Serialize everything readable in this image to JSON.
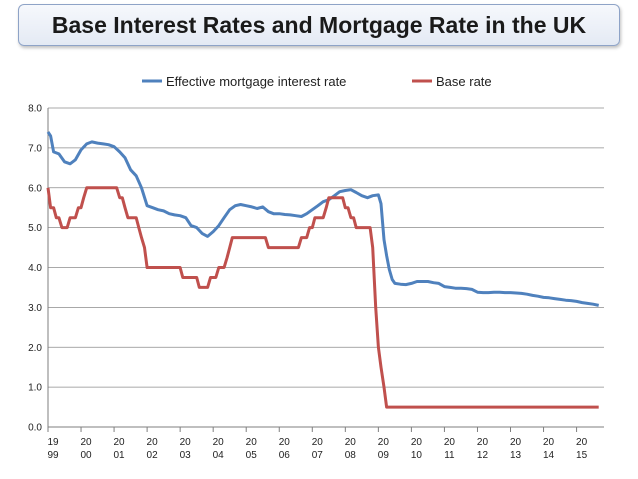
{
  "chart_data": {
    "type": "line",
    "title": "Base Interest Rates and Mortgage Rate in the UK",
    "xlabel": "",
    "ylabel": "",
    "ylim": [
      0,
      8
    ],
    "xlim": [
      1999.0,
      2015.83
    ],
    "grid": "horizontal",
    "legend_position": "top",
    "y_ticks": [
      "0.0",
      "1.0",
      "2.0",
      "3.0",
      "4.0",
      "5.0",
      "6.0",
      "7.0",
      "8.0"
    ],
    "x_ticks": [
      {
        "year": 1999,
        "top": "19",
        "bottom": "99"
      },
      {
        "year": 2000,
        "top": "20",
        "bottom": "00"
      },
      {
        "year": 2001,
        "top": "20",
        "bottom": "01"
      },
      {
        "year": 2002,
        "top": "20",
        "bottom": "02"
      },
      {
        "year": 2003,
        "top": "20",
        "bottom": "03"
      },
      {
        "year": 2004,
        "top": "20",
        "bottom": "04"
      },
      {
        "year": 2005,
        "top": "20",
        "bottom": "05"
      },
      {
        "year": 2006,
        "top": "20",
        "bottom": "06"
      },
      {
        "year": 2007,
        "top": "20",
        "bottom": "07"
      },
      {
        "year": 2008,
        "top": "20",
        "bottom": "08"
      },
      {
        "year": 2009,
        "top": "20",
        "bottom": "09"
      },
      {
        "year": 2010,
        "top": "20",
        "bottom": "10"
      },
      {
        "year": 2011,
        "top": "20",
        "bottom": "11"
      },
      {
        "year": 2012,
        "top": "20",
        "bottom": "12"
      },
      {
        "year": 2013,
        "top": "20",
        "bottom": "13"
      },
      {
        "year": 2014,
        "top": "20",
        "bottom": "14"
      },
      {
        "year": 2015,
        "top": "20",
        "bottom": "15"
      }
    ],
    "series": [
      {
        "name": "Effective mortgage interest rate",
        "color": "#4f81bd",
        "points": [
          [
            1999.0,
            7.4
          ],
          [
            1999.08,
            7.3
          ],
          [
            1999.17,
            6.9
          ],
          [
            1999.33,
            6.85
          ],
          [
            1999.5,
            6.65
          ],
          [
            1999.67,
            6.6
          ],
          [
            1999.83,
            6.7
          ],
          [
            2000.0,
            6.95
          ],
          [
            2000.17,
            7.1
          ],
          [
            2000.33,
            7.15
          ],
          [
            2000.5,
            7.12
          ],
          [
            2000.67,
            7.1
          ],
          [
            2000.83,
            7.08
          ],
          [
            2001.0,
            7.03
          ],
          [
            2001.17,
            6.9
          ],
          [
            2001.33,
            6.75
          ],
          [
            2001.5,
            6.45
          ],
          [
            2001.67,
            6.3
          ],
          [
            2001.83,
            6.0
          ],
          [
            2002.0,
            5.55
          ],
          [
            2002.17,
            5.5
          ],
          [
            2002.33,
            5.45
          ],
          [
            2002.5,
            5.42
          ],
          [
            2002.67,
            5.35
          ],
          [
            2002.83,
            5.32
          ],
          [
            2003.0,
            5.3
          ],
          [
            2003.17,
            5.25
          ],
          [
            2003.33,
            5.05
          ],
          [
            2003.5,
            5.0
          ],
          [
            2003.67,
            4.85
          ],
          [
            2003.83,
            4.78
          ],
          [
            2004.0,
            4.9
          ],
          [
            2004.17,
            5.05
          ],
          [
            2004.33,
            5.25
          ],
          [
            2004.5,
            5.45
          ],
          [
            2004.67,
            5.55
          ],
          [
            2004.83,
            5.58
          ],
          [
            2005.0,
            5.55
          ],
          [
            2005.17,
            5.52
          ],
          [
            2005.33,
            5.48
          ],
          [
            2005.5,
            5.52
          ],
          [
            2005.67,
            5.4
          ],
          [
            2005.83,
            5.35
          ],
          [
            2006.0,
            5.35
          ],
          [
            2006.17,
            5.33
          ],
          [
            2006.33,
            5.32
          ],
          [
            2006.5,
            5.3
          ],
          [
            2006.67,
            5.28
          ],
          [
            2006.83,
            5.35
          ],
          [
            2007.0,
            5.45
          ],
          [
            2007.17,
            5.55
          ],
          [
            2007.33,
            5.65
          ],
          [
            2007.5,
            5.7
          ],
          [
            2007.67,
            5.8
          ],
          [
            2007.83,
            5.9
          ],
          [
            2008.0,
            5.93
          ],
          [
            2008.17,
            5.95
          ],
          [
            2008.33,
            5.88
          ],
          [
            2008.5,
            5.8
          ],
          [
            2008.67,
            5.75
          ],
          [
            2008.83,
            5.8
          ],
          [
            2009.0,
            5.82
          ],
          [
            2009.08,
            5.6
          ],
          [
            2009.17,
            4.7
          ],
          [
            2009.25,
            4.3
          ],
          [
            2009.33,
            3.95
          ],
          [
            2009.42,
            3.7
          ],
          [
            2009.5,
            3.6
          ],
          [
            2009.67,
            3.58
          ],
          [
            2009.83,
            3.57
          ],
          [
            2010.0,
            3.6
          ],
          [
            2010.17,
            3.65
          ],
          [
            2010.33,
            3.65
          ],
          [
            2010.5,
            3.65
          ],
          [
            2010.67,
            3.62
          ],
          [
            2010.83,
            3.6
          ],
          [
            2011.0,
            3.52
          ],
          [
            2011.17,
            3.5
          ],
          [
            2011.33,
            3.48
          ],
          [
            2011.5,
            3.48
          ],
          [
            2011.67,
            3.47
          ],
          [
            2011.83,
            3.45
          ],
          [
            2012.0,
            3.38
          ],
          [
            2012.17,
            3.37
          ],
          [
            2012.33,
            3.37
          ],
          [
            2012.5,
            3.38
          ],
          [
            2012.67,
            3.38
          ],
          [
            2012.83,
            3.37
          ],
          [
            2013.0,
            3.37
          ],
          [
            2013.17,
            3.36
          ],
          [
            2013.33,
            3.35
          ],
          [
            2013.5,
            3.33
          ],
          [
            2013.67,
            3.3
          ],
          [
            2013.83,
            3.28
          ],
          [
            2014.0,
            3.25
          ],
          [
            2014.17,
            3.24
          ],
          [
            2014.33,
            3.22
          ],
          [
            2014.5,
            3.2
          ],
          [
            2014.67,
            3.18
          ],
          [
            2014.83,
            3.17
          ],
          [
            2015.0,
            3.15
          ],
          [
            2015.17,
            3.12
          ],
          [
            2015.33,
            3.1
          ],
          [
            2015.5,
            3.08
          ],
          [
            2015.67,
            3.05
          ]
        ]
      },
      {
        "name": "Base rate",
        "color": "#c0504d",
        "points": [
          [
            1999.0,
            6.0
          ],
          [
            1999.08,
            5.5
          ],
          [
            1999.17,
            5.5
          ],
          [
            1999.25,
            5.25
          ],
          [
            1999.33,
            5.25
          ],
          [
            1999.42,
            5.0
          ],
          [
            1999.58,
            5.0
          ],
          [
            1999.67,
            5.25
          ],
          [
            1999.83,
            5.25
          ],
          [
            1999.92,
            5.5
          ],
          [
            2000.0,
            5.5
          ],
          [
            2000.08,
            5.75
          ],
          [
            2000.17,
            6.0
          ],
          [
            2001.08,
            6.0
          ],
          [
            2001.17,
            5.75
          ],
          [
            2001.25,
            5.75
          ],
          [
            2001.33,
            5.5
          ],
          [
            2001.42,
            5.25
          ],
          [
            2001.67,
            5.25
          ],
          [
            2001.75,
            5.0
          ],
          [
            2001.83,
            4.75
          ],
          [
            2001.92,
            4.5
          ],
          [
            2002.0,
            4.0
          ],
          [
            2003.0,
            4.0
          ],
          [
            2003.08,
            3.75
          ],
          [
            2003.5,
            3.75
          ],
          [
            2003.58,
            3.5
          ],
          [
            2003.83,
            3.5
          ],
          [
            2003.92,
            3.75
          ],
          [
            2004.08,
            3.75
          ],
          [
            2004.17,
            4.0
          ],
          [
            2004.33,
            4.0
          ],
          [
            2004.42,
            4.25
          ],
          [
            2004.5,
            4.5
          ],
          [
            2004.58,
            4.75
          ],
          [
            2005.58,
            4.75
          ],
          [
            2005.67,
            4.5
          ],
          [
            2006.58,
            4.5
          ],
          [
            2006.67,
            4.75
          ],
          [
            2006.83,
            4.75
          ],
          [
            2006.92,
            5.0
          ],
          [
            2007.0,
            5.0
          ],
          [
            2007.08,
            5.25
          ],
          [
            2007.33,
            5.25
          ],
          [
            2007.42,
            5.5
          ],
          [
            2007.5,
            5.75
          ],
          [
            2007.92,
            5.75
          ],
          [
            2008.0,
            5.5
          ],
          [
            2008.08,
            5.5
          ],
          [
            2008.17,
            5.25
          ],
          [
            2008.25,
            5.25
          ],
          [
            2008.33,
            5.0
          ],
          [
            2008.75,
            5.0
          ],
          [
            2008.83,
            4.5
          ],
          [
            2008.92,
            3.0
          ],
          [
            2009.0,
            2.0
          ],
          [
            2009.08,
            1.5
          ],
          [
            2009.17,
            1.0
          ],
          [
            2009.25,
            0.5
          ],
          [
            2015.67,
            0.5
          ]
        ]
      }
    ]
  }
}
